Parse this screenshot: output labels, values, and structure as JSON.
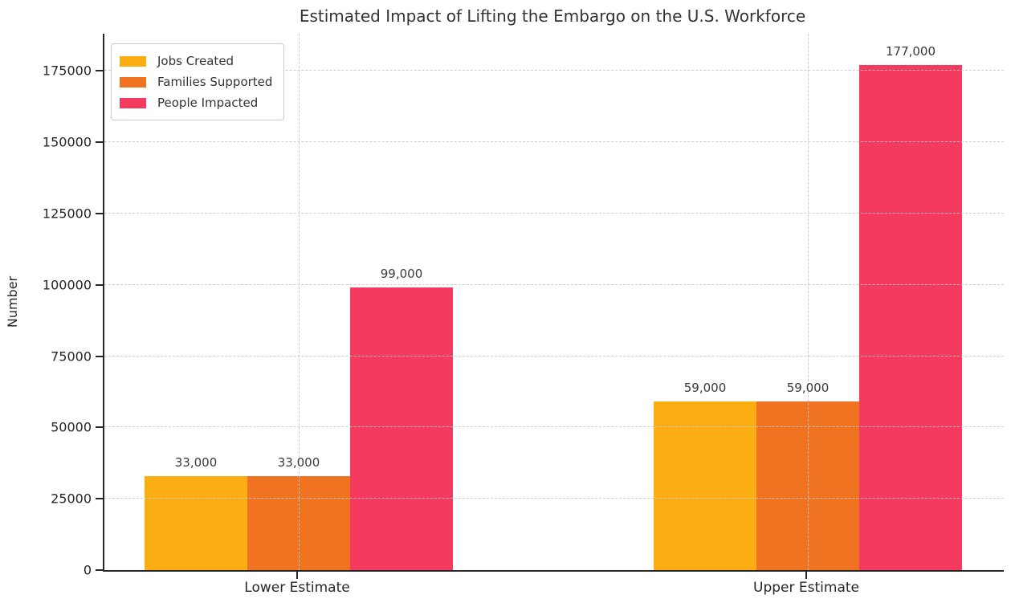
{
  "chart_data": {
    "type": "bar",
    "title": "Estimated Impact of Lifting the Embargo on the U.S. Workforce",
    "xlabel": "",
    "ylabel": "Number",
    "categories": [
      "Lower Estimate",
      "Upper Estimate"
    ],
    "series": [
      {
        "name": "Jobs Created",
        "color": "#FBAE14",
        "values": [
          33000,
          59000
        ],
        "labels": [
          "33,000",
          "59,000"
        ]
      },
      {
        "name": "Families Supported",
        "color": "#EF7320",
        "values": [
          33000,
          59000
        ],
        "labels": [
          "33,000",
          "59,000"
        ]
      },
      {
        "name": "People Impacted",
        "color": "#F43A5E",
        "values": [
          99000,
          177000
        ],
        "labels": [
          "99,000",
          "177,000"
        ]
      }
    ],
    "ylim": [
      0,
      188000
    ],
    "yticks": [
      0,
      25000,
      50000,
      75000,
      100000,
      125000,
      150000,
      175000
    ],
    "ytick_labels": [
      "0",
      "25000",
      "50000",
      "75000",
      "100000",
      "125000",
      "150000",
      "175000"
    ],
    "grid": true,
    "grid_style": "dashed",
    "legend_position": "upper left"
  },
  "colors": {
    "background": "#ffffff",
    "axis": "#262626",
    "grid": "#cccccc",
    "text": "#262626",
    "title": "#333333"
  }
}
